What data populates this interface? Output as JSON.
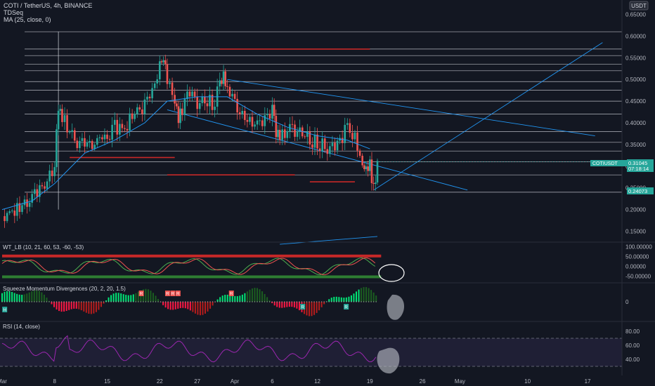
{
  "header": {
    "symbol_line": "COTI / TetherUS, 4h, BINANCE",
    "indicator1": "TDSeq",
    "indicator2": "MA (25, close, 0)",
    "currency_badge": "USDT"
  },
  "price_axis": {
    "ticks": [
      "0.65000",
      "0.60000",
      "0.55000",
      "0.50000",
      "0.45000",
      "0.40000",
      "0.35000",
      "0.30000",
      "0.25000",
      "0.20000",
      "0.15000"
    ],
    "tick_values": [
      0.65,
      0.6,
      0.55,
      0.5,
      0.45,
      0.4,
      0.35,
      0.3,
      0.25,
      0.2,
      0.15
    ],
    "range": [
      0.125,
      0.675
    ],
    "current_label": "COTIUSDT",
    "current_price": "0.31045",
    "countdown": "07:18:14",
    "low_label": "0.24073",
    "level_price": "0.25000"
  },
  "time_axis": {
    "labels": [
      "Mar",
      "8",
      "15",
      "22",
      "27",
      "Apr",
      "6",
      "12",
      "19",
      "26",
      "May",
      "10",
      "17"
    ],
    "days": [
      1,
      8,
      15,
      22,
      27,
      32,
      37,
      43,
      50,
      57,
      62,
      71,
      79
    ]
  },
  "chart_data": {
    "type": "line",
    "main": {
      "x_unit": "day",
      "close_points": [
        [
          1,
          0.185
        ],
        [
          3,
          0.205
        ],
        [
          5,
          0.228
        ],
        [
          7,
          0.262
        ],
        [
          8,
          0.31
        ],
        [
          8.5,
          0.44
        ],
        [
          9,
          0.41
        ],
        [
          10,
          0.38
        ],
        [
          11,
          0.345
        ],
        [
          12,
          0.36
        ],
        [
          13,
          0.34
        ],
        [
          14,
          0.37
        ],
        [
          15,
          0.355
        ],
        [
          16,
          0.39
        ],
        [
          17,
          0.38
        ],
        [
          18,
          0.41
        ],
        [
          19,
          0.43
        ],
        [
          20,
          0.44
        ],
        [
          21,
          0.47
        ],
        [
          22,
          0.53
        ],
        [
          22.5,
          0.55
        ],
        [
          23,
          0.5
        ],
        [
          24,
          0.46
        ],
        [
          24.5,
          0.41
        ],
        [
          25,
          0.43
        ],
        [
          26,
          0.47
        ],
        [
          27,
          0.45
        ],
        [
          28,
          0.46
        ],
        [
          29,
          0.44
        ],
        [
          30,
          0.48
        ],
        [
          30.5,
          0.505
        ],
        [
          31,
          0.47
        ],
        [
          32,
          0.45
        ],
        [
          33,
          0.42
        ],
        [
          34,
          0.41
        ],
        [
          35,
          0.395
        ],
        [
          36,
          0.4
        ],
        [
          37,
          0.425
        ],
        [
          37.5,
          0.38
        ],
        [
          38,
          0.37
        ],
        [
          39,
          0.385
        ],
        [
          40,
          0.375
        ],
        [
          41,
          0.37
        ],
        [
          42,
          0.36
        ],
        [
          43,
          0.355
        ],
        [
          44,
          0.345
        ],
        [
          45,
          0.34
        ],
        [
          46,
          0.36
        ],
        [
          47,
          0.39
        ],
        [
          48,
          0.375
        ],
        [
          49,
          0.3
        ],
        [
          49.5,
          0.29
        ],
        [
          50,
          0.31
        ],
        [
          50.5,
          0.245
        ],
        [
          51,
          0.31
        ]
      ],
      "ma_points": [
        [
          1,
          0.2
        ],
        [
          5,
          0.22
        ],
        [
          8,
          0.26
        ],
        [
          12,
          0.33
        ],
        [
          16,
          0.36
        ],
        [
          20,
          0.4
        ],
        [
          23,
          0.45
        ],
        [
          27,
          0.46
        ],
        [
          31,
          0.46
        ],
        [
          35,
          0.42
        ],
        [
          39,
          0.39
        ],
        [
          43,
          0.37
        ],
        [
          47,
          0.36
        ],
        [
          50,
          0.34
        ]
      ],
      "horizontal_levels": [
        0.61,
        0.57,
        0.555,
        0.535,
        0.52,
        0.495,
        0.475,
        0.45,
        0.42,
        0.38,
        0.355,
        0.335,
        0.31,
        0.28,
        0.24
      ],
      "red_levels": [
        {
          "price": 0.57,
          "from_day": 30,
          "to_day": 50
        },
        {
          "price": 0.32,
          "from_day": 10,
          "to_day": 24
        },
        {
          "price": 0.28,
          "from_day": 23,
          "to_day": 40
        },
        {
          "price": 0.264,
          "from_day": 42,
          "to_day": 48
        }
      ],
      "trendlines": [
        {
          "from": [
            31,
            0.5
          ],
          "to": [
            80,
            0.37
          ]
        },
        {
          "from": [
            23,
            0.43
          ],
          "to": [
            63,
            0.245
          ]
        },
        {
          "from": [
            50.5,
            0.245
          ],
          "to": [
            81,
            0.585
          ]
        },
        {
          "from": [
            38,
            0.12
          ],
          "to": [
            51,
            0.138
          ]
        }
      ]
    },
    "wt_lb": {
      "title": "WT_LB (10, 21, 60, 53, -60, -53)",
      "ticks": [
        "100.00000",
        "50.00000",
        "0.00000",
        "-50.00000"
      ],
      "tick_values": [
        100,
        50,
        0,
        -50
      ],
      "overbought": 53,
      "oversold": -53
    },
    "squeeze": {
      "title": "Squeeze Momentum Divergences (20, 2, 20, 1.5)",
      "ticks": [
        "0"
      ],
      "labels": [
        "H",
        "R",
        "R",
        "R",
        "R",
        "R",
        "R",
        "R"
      ]
    },
    "rsi": {
      "title": "RSI (14, close)",
      "ticks": [
        "80.00",
        "60.00",
        "40.00"
      ],
      "tick_values": [
        80,
        60,
        40
      ],
      "upper": 70,
      "lower": 30
    }
  },
  "colors": {
    "background": "#131722",
    "up": "#26a69a",
    "down": "#ef5350",
    "ma": "#2196f3",
    "levels": "#d1d4dc",
    "red_level": "#c62828",
    "rsi": "#9c27b0"
  }
}
